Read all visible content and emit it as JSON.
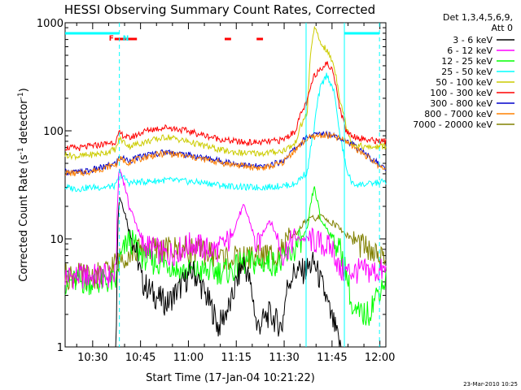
{
  "chart_data": {
    "type": "line",
    "title": "HESSI Observing Summary Count Rates, Corrected",
    "xlabel": "Start Time (17-Jan-04 10:21:22)",
    "ylabel": "Corrected Count Rate (s⁻¹ detector⁻¹)",
    "ylabel_parts": [
      "Corrected Count Rate (s",
      "-1",
      " detector",
      "-1",
      ")"
    ],
    "y_scale": "log",
    "ylim": [
      1,
      1000
    ],
    "xlim_min": [
      0,
      100.5
    ],
    "y_tick_labels": [
      {
        "value": 1,
        "label": "1"
      },
      {
        "value": 10,
        "label": "10"
      },
      {
        "value": 100,
        "label": "100"
      },
      {
        "value": 1000,
        "label": "1000"
      }
    ],
    "x_tick_labels": [
      {
        "min": 8.63,
        "label": "10:30"
      },
      {
        "min": 23.63,
        "label": "10:45"
      },
      {
        "min": 38.63,
        "label": "11:00"
      },
      {
        "min": 53.63,
        "label": "11:15"
      },
      {
        "min": 68.63,
        "label": "11:30"
      },
      {
        "min": 83.63,
        "label": "11:45"
      },
      {
        "min": 98.63,
        "label": "12:00"
      }
    ],
    "legend_header": [
      "Det 1,3,4,5,6,9,",
      "Att 0"
    ],
    "legend_placement": "right",
    "series": [
      {
        "name": "3 - 6 keV",
        "color": "#000000",
        "x": [
          0,
          4,
          8,
          12,
          16,
          17,
          20,
          24,
          28,
          32,
          36,
          40,
          44,
          48,
          52,
          56,
          60,
          64,
          68,
          70,
          72,
          75,
          78,
          80,
          83,
          86,
          90,
          92,
          96,
          100
        ],
        "y": [
          0,
          0,
          0,
          0,
          0,
          25,
          12,
          4,
          3,
          2.5,
          3.5,
          5,
          3,
          1.5,
          2.5,
          6,
          1.5,
          2,
          1.5,
          4,
          5,
          5,
          6,
          4,
          2,
          1,
          0,
          0,
          0,
          0
        ]
      },
      {
        "name": "6 - 12 keV",
        "color": "#ff00ff",
        "x": [
          0,
          4,
          8,
          12,
          16,
          17,
          20,
          24,
          28,
          32,
          36,
          40,
          44,
          48,
          52,
          56,
          60,
          64,
          68,
          72,
          76,
          80,
          84,
          86,
          90
        ],
        "y": [
          4.5,
          4.5,
          4.5,
          4.5,
          4.5,
          45,
          20,
          9,
          8,
          7,
          8,
          9,
          8,
          8,
          10,
          20,
          8,
          15,
          7,
          10,
          10,
          9,
          8,
          5,
          5
        ]
      },
      {
        "name": "12 - 25 keV",
        "color": "#00ff00",
        "x": [
          0,
          4,
          8,
          12,
          16,
          17,
          20,
          24,
          28,
          32,
          36,
          40,
          44,
          48,
          52,
          56,
          60,
          64,
          68,
          72,
          76,
          78,
          80,
          84,
          86,
          90,
          95,
          100
        ],
        "y": [
          4,
          4,
          4,
          4,
          4,
          6,
          10,
          7,
          6,
          6,
          5,
          5,
          5,
          5,
          5,
          6,
          6,
          6,
          6,
          8,
          12,
          30,
          15,
          10,
          8,
          2,
          2,
          4
        ]
      },
      {
        "name": "25 - 50 keV",
        "color": "#00ffff",
        "x": [
          0,
          4,
          8,
          12,
          16,
          17,
          20,
          26,
          32,
          38,
          44,
          50,
          56,
          62,
          68,
          72,
          76,
          78,
          80,
          82,
          84,
          86,
          88,
          90,
          95,
          100
        ],
        "y": [
          30,
          29,
          30,
          30,
          31,
          40,
          33,
          34,
          35,
          34,
          33,
          31,
          30,
          30,
          31,
          32,
          42,
          100,
          250,
          330,
          240,
          90,
          45,
          32,
          32,
          34
        ]
      },
      {
        "name": "50 - 100 keV",
        "color": "#cccc00",
        "x": [
          0,
          4,
          8,
          12,
          16,
          17,
          20,
          26,
          32,
          38,
          44,
          50,
          56,
          62,
          68,
          72,
          76,
          78,
          80,
          82,
          84,
          86,
          88,
          90,
          95,
          100
        ],
        "y": [
          60,
          58,
          60,
          62,
          68,
          85,
          72,
          80,
          88,
          80,
          72,
          65,
          62,
          62,
          65,
          75,
          150,
          900,
          650,
          550,
          420,
          200,
          110,
          75,
          70,
          72
        ]
      },
      {
        "name": "100 - 300 keV",
        "color": "#ff0000",
        "x": [
          0,
          4,
          8,
          12,
          16,
          17,
          20,
          26,
          32,
          38,
          44,
          50,
          56,
          62,
          68,
          72,
          76,
          78,
          80,
          82,
          84,
          86,
          88,
          90,
          95,
          100
        ],
        "y": [
          70,
          69,
          72,
          75,
          80,
          95,
          85,
          102,
          108,
          100,
          90,
          82,
          78,
          78,
          82,
          98,
          190,
          320,
          380,
          420,
          350,
          160,
          100,
          90,
          82,
          80
        ]
      },
      {
        "name": "300 - 800 keV",
        "color": "#0000cc",
        "x": [
          0,
          4,
          8,
          12,
          16,
          17,
          20,
          26,
          32,
          38,
          44,
          50,
          56,
          62,
          68,
          72,
          76,
          80,
          84,
          88,
          92,
          96,
          100
        ],
        "y": [
          42,
          41,
          43,
          46,
          50,
          57,
          53,
          60,
          64,
          60,
          56,
          52,
          48,
          46,
          52,
          68,
          88,
          94,
          92,
          82,
          68,
          55,
          45
        ]
      },
      {
        "name": "800 - 7000 keV",
        "color": "#ff8000",
        "x": [
          0,
          4,
          8,
          12,
          16,
          17,
          20,
          26,
          32,
          38,
          44,
          50,
          56,
          62,
          68,
          72,
          76,
          80,
          84,
          88,
          92,
          96,
          100
        ],
        "y": [
          41,
          40,
          42,
          45,
          49,
          55,
          51,
          58,
          62,
          58,
          54,
          50,
          47,
          45,
          50,
          66,
          85,
          91,
          89,
          80,
          66,
          53,
          44
        ]
      },
      {
        "name": "7000 - 20000 keV",
        "color": "#808000",
        "x": [
          0,
          4,
          8,
          12,
          16,
          20,
          24,
          28,
          32,
          36,
          40,
          44,
          48,
          52,
          56,
          60,
          64,
          68,
          72,
          76,
          80,
          84,
          88,
          92,
          96,
          100
        ],
        "y": [
          4.5,
          4.5,
          4.5,
          4.6,
          6,
          7.5,
          8,
          8,
          8,
          8,
          8,
          7.5,
          7,
          6.5,
          6.5,
          7,
          7,
          8,
          11,
          15,
          16,
          14,
          11,
          9,
          7.5,
          6
        ]
      }
    ],
    "intervals": [
      {
        "start": 0,
        "end": 17,
        "color": "#00ffff"
      },
      {
        "start": 87.5,
        "end": 98.5,
        "color": "#00ffff"
      }
    ],
    "flare_markers": [
      {
        "start": 15.5,
        "end": 22.5,
        "color": "#ff0000"
      },
      {
        "start": 50,
        "end": 52,
        "color": "#ff0000"
      },
      {
        "start": 60,
        "end": 62,
        "color": "#ff0000"
      }
    ],
    "annotations": [
      {
        "text": "F",
        "x_min": 14.5,
        "color": "#ff0000"
      },
      {
        "text": "N",
        "x_min": 19,
        "color": "#00ffff"
      }
    ],
    "vlines": [
      {
        "x_min": 17,
        "style": "dashed",
        "color": "#00ffff"
      },
      {
        "x_min": 75.5,
        "style": "solid",
        "color": "#00ffff"
      },
      {
        "x_min": 87.5,
        "style": "solid",
        "color": "#00ffff"
      },
      {
        "x_min": 98.5,
        "style": "dashed",
        "color": "#00ffff"
      }
    ],
    "footer_date": "23-Mar-2010 10:25",
    "grid": false
  }
}
